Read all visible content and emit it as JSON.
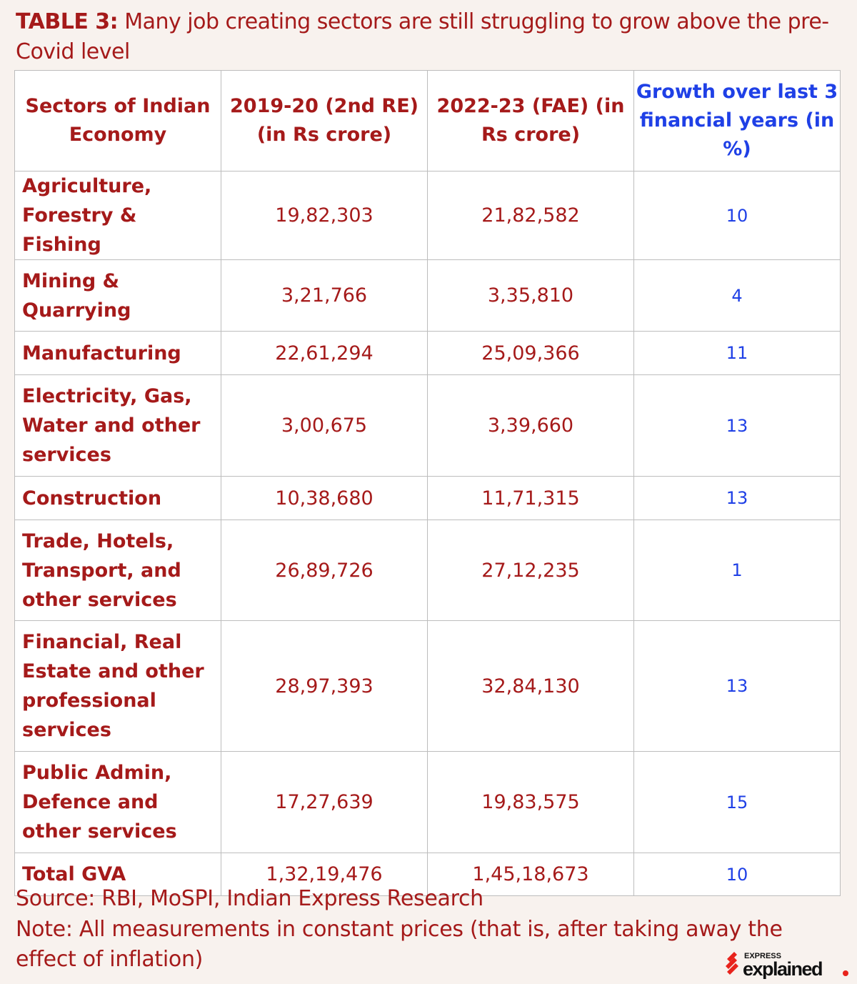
{
  "title": {
    "label": "TABLE 3:",
    "text": " Many job creating sectors are still struggling to grow above the pre-Covid level"
  },
  "colors": {
    "text": "#a51a1a",
    "growth": "#1f40e6",
    "background": "#f8f2ee"
  },
  "chart_data": {
    "type": "table",
    "columns": [
      "Sectors of Indian Economy",
      "2019-20 (2nd RE) (in Rs crore)",
      "2022-23 (FAE) (in Rs crore)",
      "Growth over last 3 financial years (in %)"
    ],
    "rows": [
      [
        "Agriculture, Forestry & Fishing",
        "19,82,303",
        "21,82,582",
        "10"
      ],
      [
        "Mining & Quarrying",
        "3,21,766",
        "3,35,810",
        "4"
      ],
      [
        "Manufacturing",
        "22,61,294",
        "25,09,366",
        "11"
      ],
      [
        "Electricity, Gas, Water and other services",
        "3,00,675",
        "3,39,660",
        "13"
      ],
      [
        "Construction",
        "10,38,680",
        "11,71,315",
        "13"
      ],
      [
        "Trade, Hotels, Transport, and other services",
        "26,89,726",
        "27,12,235",
        "1"
      ],
      [
        "Financial, Real Estate and other professional services",
        "28,97,393",
        "32,84,130",
        "13"
      ],
      [
        "Public Admin, Defence and other services",
        "17,27,639",
        "19,83,575",
        "15"
      ],
      [
        "Total GVA",
        "1,32,19,476",
        "1,45,18,673",
        "10"
      ]
    ]
  },
  "footer": {
    "source": "Source: RBI, MoSPI, Indian Express Research",
    "note": "Note: All measurements in constant prices (that is, after taking away the effect of inflation)"
  },
  "logo": {
    "top": "EXPRESS",
    "main": "explained"
  }
}
